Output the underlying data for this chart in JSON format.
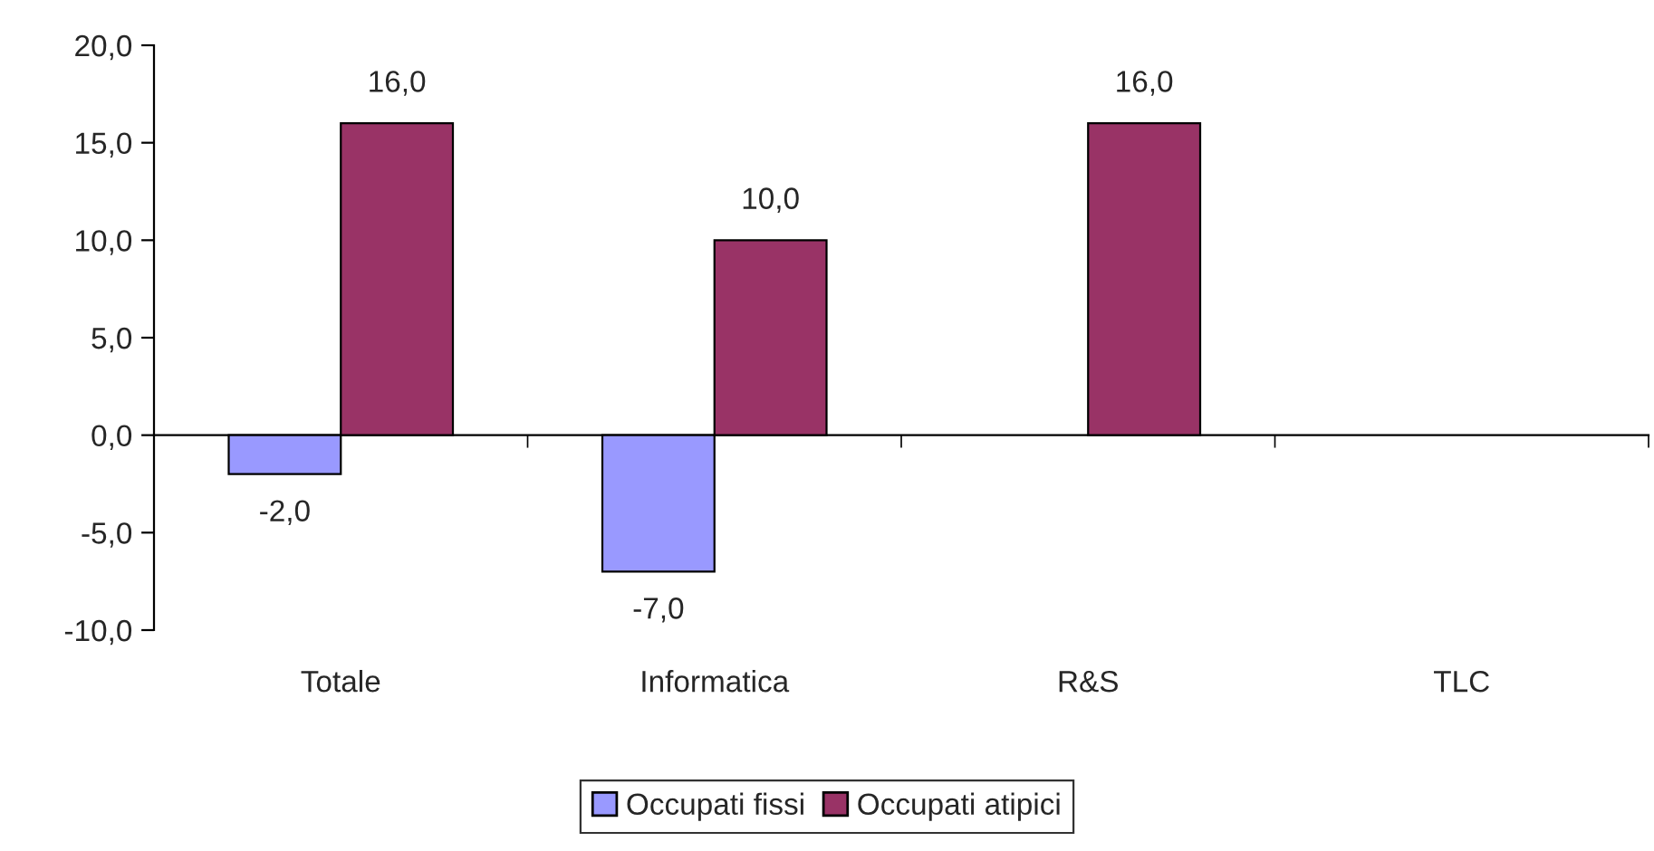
{
  "chart_data": {
    "type": "bar",
    "categories": [
      "Totale",
      "Informatica",
      "R&S",
      "TLC"
    ],
    "series": [
      {
        "name": "Occupati fissi",
        "color": "#9999ff",
        "values": [
          -2.0,
          -7.0,
          null,
          null
        ],
        "value_labels": [
          "-2,0",
          "-7,0",
          null,
          null
        ]
      },
      {
        "name": "Occupati atipici",
        "color": "#993366",
        "values": [
          16.0,
          10.0,
          16.0,
          null
        ],
        "value_labels": [
          "16,0",
          "10,0",
          "16,0",
          null
        ]
      }
    ],
    "ylim": [
      -10,
      20
    ],
    "yticks": [
      {
        "value": -10,
        "label": "-10,0"
      },
      {
        "value": -5,
        "label": "-5,0"
      },
      {
        "value": 0,
        "label": "0,0"
      },
      {
        "value": 5,
        "label": "5,0"
      },
      {
        "value": 10,
        "label": "10,0"
      },
      {
        "value": 15,
        "label": "15,0"
      },
      {
        "value": 20,
        "label": "20,0"
      }
    ],
    "legend": "bottom"
  }
}
